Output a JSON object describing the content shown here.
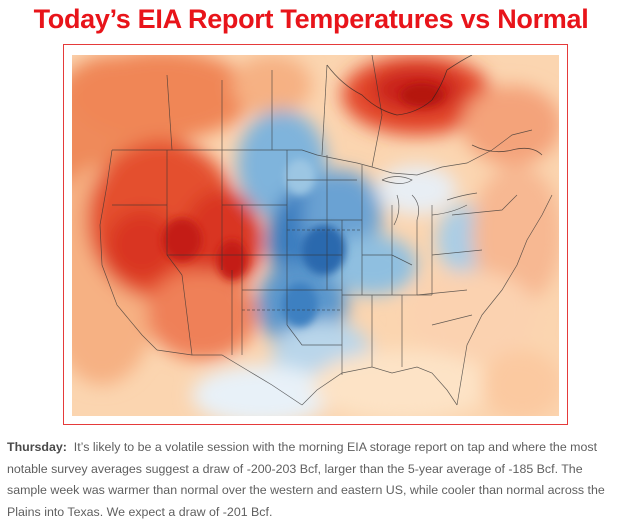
{
  "title": "Today’s EIA Report Temperatures vs Normal",
  "caption": {
    "lead": "Thursday:",
    "text": "It’s likely to be a volatile session with the morning EIA storage report on tap and where the most notable survey averages suggest a draw of -200-203 Bcf, larger than the 5-year average of -185 Bcf. The sample week was warmer than normal over the western and eastern US, while cooler than normal across the Plains into Texas. We expect a draw of -201 Bcf."
  },
  "map_legend": {
    "warm_color": "#d7301f",
    "cool_color": "#2166ac",
    "neutral_color": "#ffffff"
  }
}
